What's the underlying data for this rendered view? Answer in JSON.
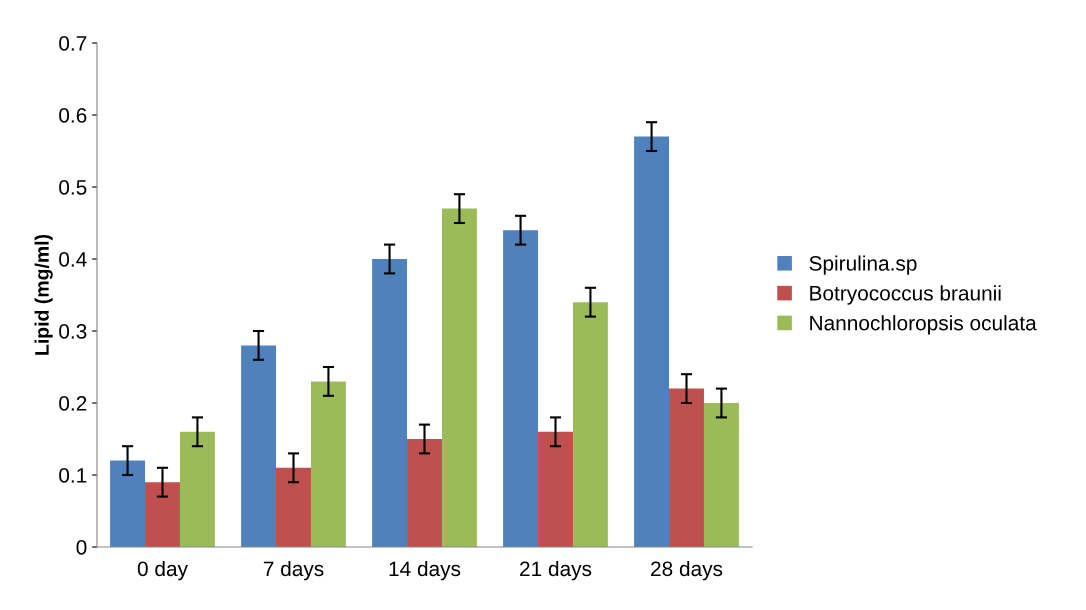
{
  "chart_data": {
    "type": "bar",
    "ylabel": "Lipid (mg/ml)",
    "categories": [
      "0 day",
      "7 days",
      "14 days",
      "21 days",
      "28 days"
    ],
    "series": [
      {
        "name": "Spirulina.sp",
        "color": "#4f81bd",
        "values": [
          0.12,
          0.28,
          0.4,
          0.44,
          0.57
        ],
        "errors": [
          0.02,
          0.02,
          0.02,
          0.02,
          0.02
        ]
      },
      {
        "name": "Botryococcus braunii",
        "color": "#c0504d",
        "values": [
          0.09,
          0.11,
          0.15,
          0.16,
          0.22
        ],
        "errors": [
          0.02,
          0.02,
          0.02,
          0.02,
          0.02
        ]
      },
      {
        "name": "Nannochloropsis oculata",
        "color": "#9bbb59",
        "values": [
          0.16,
          0.23,
          0.47,
          0.34,
          0.2
        ],
        "errors": [
          0.02,
          0.02,
          0.02,
          0.02,
          0.02
        ]
      }
    ],
    "ylim": [
      0,
      0.7
    ],
    "yticks": [
      0,
      0.1,
      0.2,
      0.3,
      0.4,
      0.5,
      0.6,
      0.7
    ],
    "grid": false,
    "legend": "right"
  }
}
